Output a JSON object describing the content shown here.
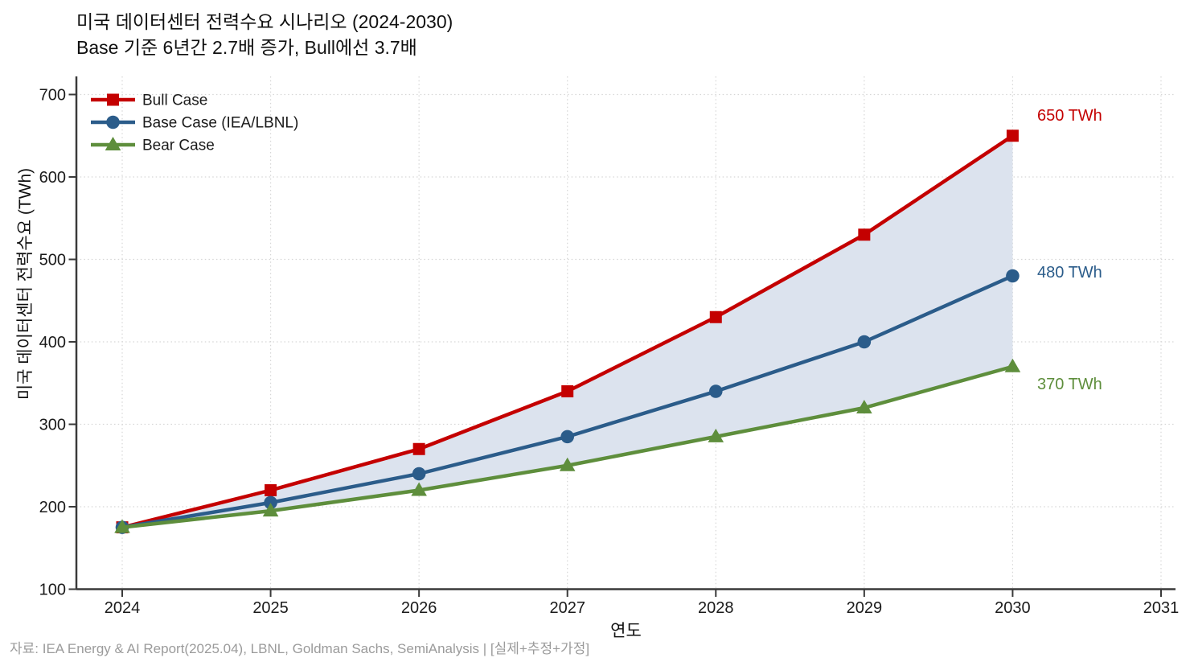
{
  "title": {
    "line1": "미국 데이터센터 전력수요 시나리오 (2024-2030)",
    "line2": "Base 기준 6년간 2.7배 증가, Bull에선 3.7배"
  },
  "source_note": "자료: IEA Energy & AI Report(2025.04), LBNL, Goldman Sachs, SemiAnalysis | [실제+추정+가정]",
  "chart_data": {
    "type": "line",
    "title": "미국 데이터센터 전력수요 시나리오 (2024-2030)",
    "subtitle": "Base 기준 6년간 2.7배 증가, Bull에선 3.7배",
    "xlabel": "연도",
    "ylabel": "미국 데이터센터 전력수요 (TWh)",
    "x": [
      2024,
      2025,
      2026,
      2027,
      2028,
      2029,
      2030
    ],
    "x_ticks": [
      2024,
      2025,
      2026,
      2027,
      2028,
      2029,
      2030,
      2031
    ],
    "y_ticks": [
      100,
      200,
      300,
      400,
      500,
      600,
      700
    ],
    "xlim": [
      2023.7,
      2031.2
    ],
    "ylim": [
      100,
      720
    ],
    "grid": {
      "visible": true,
      "style": "dotted",
      "color": "#D6D6D6"
    },
    "legend": {
      "position": "upper-left",
      "frame": false
    },
    "series": [
      {
        "name": "Bull Case",
        "color": "#C40000",
        "marker": "square",
        "values": [
          175,
          220,
          270,
          340,
          430,
          530,
          650
        ],
        "end_label": "650 TWh"
      },
      {
        "name": "Base Case (IEA/LBNL)",
        "color": "#2B5C8A",
        "marker": "circle",
        "values": [
          175,
          205,
          240,
          285,
          340,
          400,
          480
        ],
        "end_label": "480 TWh"
      },
      {
        "name": "Bear Case",
        "color": "#5E8E3C",
        "marker": "triangle",
        "values": [
          175,
          195,
          220,
          250,
          285,
          320,
          370
        ],
        "end_label": "370 TWh"
      }
    ],
    "band": {
      "between": [
        "Bull Case",
        "Bear Case"
      ],
      "color": "#DCE3EE"
    },
    "axis": {
      "spine_color": "#3A3A3A",
      "tick_label_color": "#1A1A1A"
    }
  }
}
